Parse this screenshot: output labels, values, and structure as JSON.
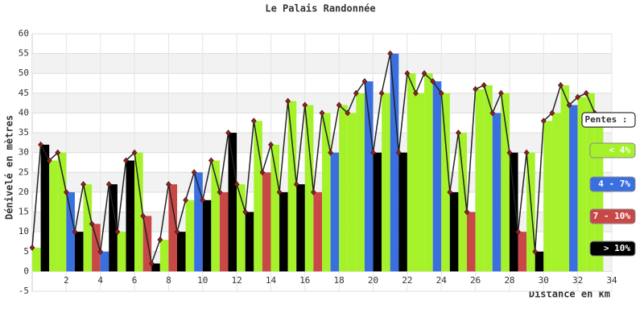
{
  "chart_data": {
    "type": "profile",
    "title": "Le Palais Randonnée",
    "y_label": "Dénivelé en mètres",
    "x_label": "Distance en km",
    "xlim": [
      0,
      34
    ],
    "xticks": [
      2,
      4,
      6,
      8,
      10,
      12,
      14,
      16,
      18,
      20,
      22,
      24,
      26,
      28,
      30,
      32,
      34
    ],
    "ylim": [
      -5,
      60
    ],
    "yticks": [
      -5,
      0,
      5,
      10,
      15,
      20,
      25,
      30,
      35,
      40,
      45,
      50,
      55,
      60
    ],
    "grid": true,
    "line_color": "#222222",
    "marker_color": "#a01818",
    "legend_title": "Pentes :",
    "legend": [
      {
        "label": "< 4%",
        "color": "#a6f22a",
        "text_color": "#ffffff"
      },
      {
        "label": "4 - 7%",
        "color": "#3a6fe0",
        "text_color": "#ffffff"
      },
      {
        "label": "7 - 10%",
        "color": "#c84848",
        "text_color": "#ffffff"
      },
      {
        "label": "> 10%",
        "color": "#000000",
        "text_color": "#ffffff"
      }
    ],
    "x": [
      0,
      0.5,
      1,
      1.5,
      2,
      2.5,
      3,
      3.5,
      4,
      4.5,
      5,
      5.5,
      6,
      6.5,
      7,
      7.5,
      8,
      8.5,
      9,
      9.5,
      10,
      10.5,
      11,
      11.5,
      12,
      12.5,
      13,
      13.5,
      14,
      14.5,
      15,
      15.5,
      16,
      16.5,
      17,
      17.5,
      18,
      18.5,
      19,
      19.5,
      20,
      20.5,
      21,
      21.5,
      22,
      22.5,
      23,
      23.5,
      24,
      24.5,
      25,
      25.5,
      26,
      26.5,
      27,
      27.5,
      28,
      28.5,
      29,
      29.5,
      30,
      30.5,
      31,
      31.5,
      32,
      32.5,
      33
    ],
    "values": [
      6,
      32,
      28,
      30,
      20,
      10,
      22,
      12,
      5,
      22,
      10,
      28,
      30,
      14,
      2,
      8,
      22,
      10,
      18,
      25,
      18,
      28,
      20,
      35,
      22,
      15,
      38,
      25,
      32,
      20,
      43,
      22,
      42,
      20,
      40,
      30,
      42,
      40,
      45,
      48,
      30,
      45,
      55,
      30,
      50,
      45,
      50,
      48,
      45,
      20,
      35,
      15,
      46,
      47,
      40,
      45,
      30,
      10,
      30,
      5,
      38,
      40,
      47,
      42,
      44,
      45,
      40
    ],
    "bar_classes": [
      0,
      3,
      0,
      0,
      1,
      3,
      0,
      2,
      1,
      3,
      0,
      3,
      0,
      2,
      3,
      0,
      2,
      3,
      0,
      1,
      3,
      0,
      2,
      3,
      0,
      3,
      0,
      2,
      0,
      3,
      0,
      3,
      0,
      2,
      0,
      1,
      0,
      0,
      0,
      1,
      3,
      0,
      1,
      3,
      0,
      0,
      0,
      1,
      0,
      3,
      0,
      2,
      0,
      0,
      1,
      0,
      3,
      2,
      0,
      3,
      0,
      0,
      0,
      1,
      0,
      0,
      0
    ]
  }
}
